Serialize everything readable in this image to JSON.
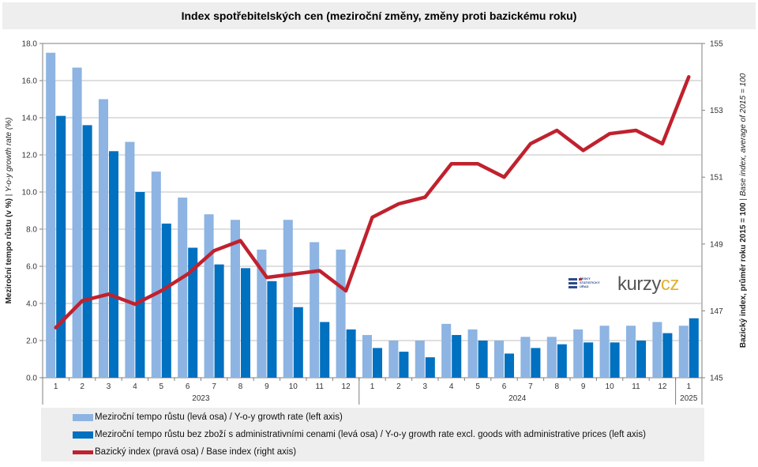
{
  "title": "Index spotřebitelských cen (meziroční změny, změny proti bazickému roku)",
  "logo": {
    "csu_lines": [
      "ČESKÝ",
      "STATISTICKÝ",
      "ÚŘAD"
    ],
    "brand_main": "kurzy",
    "brand_accent": "cz",
    "brand_main_color": "#555555",
    "brand_accent_color": "#e2b030"
  },
  "colors": {
    "series1": "#8db4e2",
    "series2": "#0070c0",
    "series3": "#c0212e",
    "grid": "#bfbfbf",
    "axis": "#7f7f7f",
    "legend_bg": "#eeeeee"
  },
  "legend": {
    "items": [
      {
        "label": "Meziroční tempo růstu (levá osa) / Y-o-y growth rate (left axis)",
        "kind": "bar",
        "color": "#8db4e2"
      },
      {
        "label": "Meziroční tempo růstu bez zboží s administrativními cenami (levá osa) / Y-o-y growth rate excl. goods with administrative prices (left axis)",
        "kind": "bar",
        "color": "#0070c0"
      },
      {
        "label": "Bazický index (pravá osa) / Base index (right axis)",
        "kind": "line",
        "color": "#c0212e"
      }
    ]
  },
  "chart_data": {
    "type": "bar",
    "title": "Index spotřebitelských cen (meziroční změny, změny proti bazickému roku)",
    "ylabel_left": {
      "bold": "Meziroční tempo růstu (v %)",
      "sep": " | ",
      "italic": "Y-o-y growth rate (%)"
    },
    "ylabel_right": {
      "bold": "Bazický index, průměr roku 2015 = 100",
      "sep": " | ",
      "italic": "Base index, average of 2015 = 100"
    },
    "ylim_left": [
      0,
      18
    ],
    "yticks_left": [
      "0.0",
      "2.0",
      "4.0",
      "6.0",
      "8.0",
      "10.0",
      "12.0",
      "14.0",
      "16.0",
      "18.0"
    ],
    "ylim_right": [
      145,
      155
    ],
    "yticks_right": [
      "145",
      "147",
      "149",
      "151",
      "153",
      "155"
    ],
    "grid": true,
    "categories": [
      "1",
      "2",
      "3",
      "4",
      "5",
      "6",
      "7",
      "8",
      "9",
      "10",
      "11",
      "12",
      "1",
      "2",
      "3",
      "4",
      "5",
      "6",
      "7",
      "8",
      "9",
      "10",
      "11",
      "12",
      "1"
    ],
    "groups": [
      {
        "label": "2023",
        "count": 12
      },
      {
        "label": "2024",
        "count": 12
      },
      {
        "label": "2025",
        "count": 1
      }
    ],
    "series": [
      {
        "name": "Meziroční tempo růstu (levá osa) / Y-o-y growth rate (left axis)",
        "type": "bar",
        "axis": "left",
        "values": [
          17.5,
          16.7,
          15.0,
          12.7,
          11.1,
          9.7,
          8.8,
          8.5,
          6.9,
          8.5,
          7.3,
          6.9,
          2.3,
          2.0,
          2.0,
          2.9,
          2.6,
          2.0,
          2.2,
          2.2,
          2.6,
          2.8,
          2.8,
          3.0,
          2.8
        ]
      },
      {
        "name": "Meziroční tempo růstu bez zboží s administrativními cenami (levá osa) / Y-o-y growth rate excl. goods with administrative prices (left axis)",
        "type": "bar",
        "axis": "left",
        "values": [
          14.1,
          13.6,
          12.2,
          10.0,
          8.3,
          7.0,
          6.1,
          5.9,
          5.2,
          3.8,
          3.0,
          2.6,
          1.6,
          1.4,
          1.1,
          2.3,
          2.0,
          1.3,
          1.6,
          1.8,
          1.9,
          1.9,
          2.0,
          2.4,
          3.2
        ]
      },
      {
        "name": "Bazický index (pravá osa) / Base index (right axis)",
        "type": "line",
        "axis": "right",
        "values": [
          146.5,
          147.3,
          147.5,
          147.2,
          147.6,
          148.1,
          148.8,
          149.1,
          148.0,
          148.1,
          148.2,
          147.6,
          149.8,
          150.2,
          150.4,
          151.4,
          151.4,
          151.0,
          152.0,
          152.4,
          151.8,
          152.3,
          152.4,
          152.0,
          154.0
        ]
      }
    ]
  }
}
